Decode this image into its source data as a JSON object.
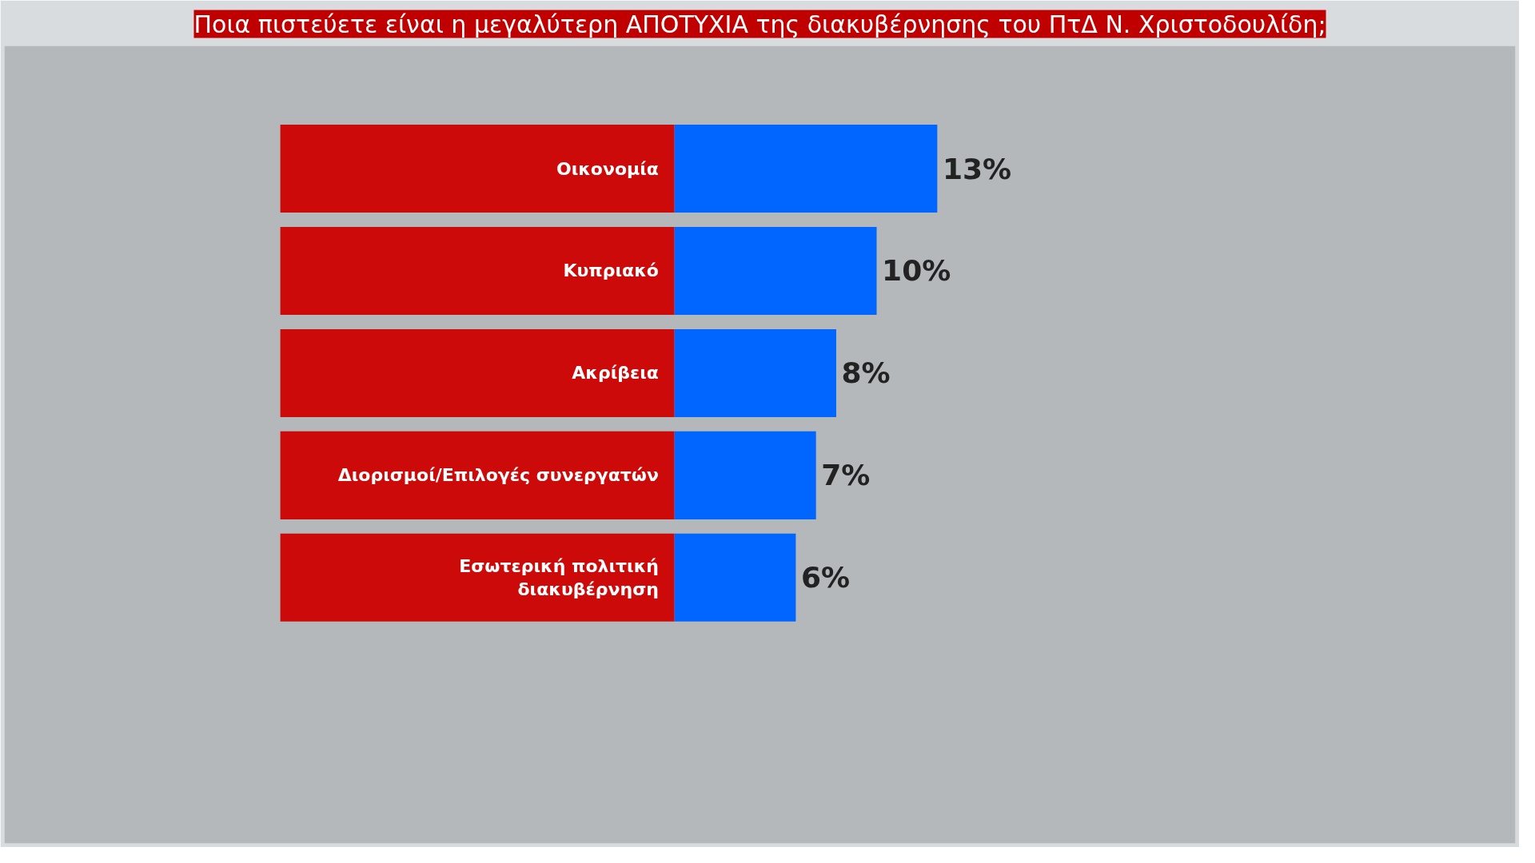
{
  "chart_data": {
    "type": "bar",
    "orientation": "horizontal",
    "title": "Ποια πιστεύετε είναι η μεγαλύτερη ΑΠΟΤΥΧΙΑ της διακυβέρνησης του ΠτΔ Ν. Χριστοδουλίδη;",
    "categories": [
      "Οικονομία",
      "Κυπριακό",
      "Ακρίβεια",
      "Διορισμοί/Επιλογές συνεργατών",
      "Εσωτερική πολιτική\nδιακυβέρνηση"
    ],
    "values": [
      13,
      10,
      8,
      7,
      6
    ],
    "value_labels": [
      "13%",
      "10%",
      "8%",
      "7%",
      "6%"
    ],
    "color": "#0066ff",
    "grid": false
  }
}
